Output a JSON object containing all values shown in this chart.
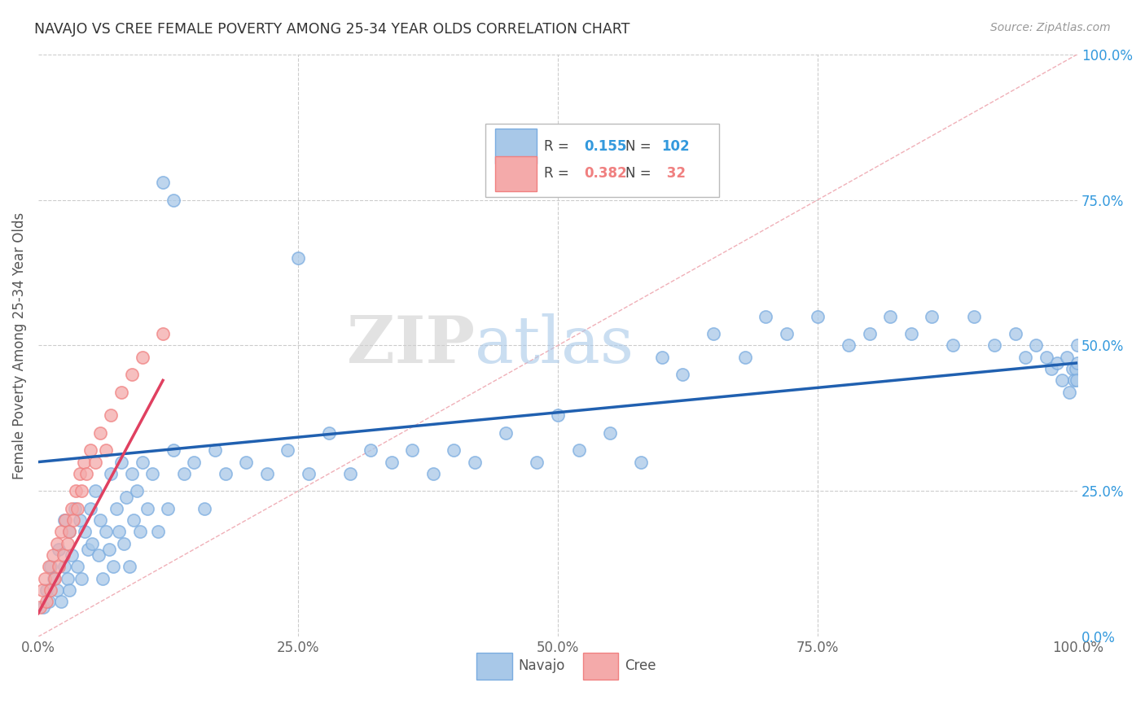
{
  "title": "NAVAJO VS CREE FEMALE POVERTY AMONG 25-34 YEAR OLDS CORRELATION CHART",
  "source": "Source: ZipAtlas.com",
  "ylabel": "Female Poverty Among 25-34 Year Olds",
  "navajo_R": 0.155,
  "navajo_N": 102,
  "cree_R": 0.382,
  "cree_N": 32,
  "navajo_color": "#a8c8e8",
  "cree_color": "#f4aaaa",
  "navajo_edge_color": "#7aace0",
  "cree_edge_color": "#f08080",
  "navajo_line_color": "#2060b0",
  "cree_line_color": "#e04060",
  "diagonal_color": "#f0b0b8",
  "background_color": "#ffffff",
  "watermark_zip": "ZIP",
  "watermark_atlas": "atlas",
  "xlim": [
    0,
    1
  ],
  "ylim": [
    0,
    1
  ],
  "xticks": [
    0,
    0.25,
    0.5,
    0.75,
    1.0
  ],
  "yticks": [
    0,
    0.25,
    0.5,
    0.75,
    1.0
  ],
  "xticklabels": [
    "0.0%",
    "25.0%",
    "50.0%",
    "75.0%",
    "100.0%"
  ],
  "yticklabels": [
    "0.0%",
    "25.0%",
    "50.0%",
    "75.0%",
    "100.0%"
  ],
  "navajo_x": [
    0.005,
    0.008,
    0.01,
    0.012,
    0.015,
    0.018,
    0.02,
    0.022,
    0.025,
    0.025,
    0.028,
    0.03,
    0.03,
    0.032,
    0.035,
    0.038,
    0.04,
    0.042,
    0.045,
    0.048,
    0.05,
    0.052,
    0.055,
    0.058,
    0.06,
    0.062,
    0.065,
    0.068,
    0.07,
    0.072,
    0.075,
    0.078,
    0.08,
    0.082,
    0.085,
    0.088,
    0.09,
    0.092,
    0.095,
    0.098,
    0.1,
    0.105,
    0.11,
    0.115,
    0.12,
    0.125,
    0.13,
    0.14,
    0.15,
    0.16,
    0.17,
    0.18,
    0.2,
    0.22,
    0.24,
    0.26,
    0.28,
    0.3,
    0.32,
    0.34,
    0.36,
    0.38,
    0.4,
    0.42,
    0.45,
    0.48,
    0.5,
    0.52,
    0.55,
    0.58,
    0.6,
    0.62,
    0.65,
    0.68,
    0.7,
    0.72,
    0.75,
    0.78,
    0.8,
    0.82,
    0.84,
    0.86,
    0.88,
    0.9,
    0.92,
    0.94,
    0.95,
    0.96,
    0.97,
    0.975,
    0.98,
    0.985,
    0.99,
    0.992,
    0.995,
    0.997,
    0.998,
    0.999,
    1.0,
    1.0,
    0.13,
    0.25
  ],
  "navajo_y": [
    0.05,
    0.08,
    0.06,
    0.12,
    0.1,
    0.08,
    0.15,
    0.06,
    0.12,
    0.2,
    0.1,
    0.18,
    0.08,
    0.14,
    0.22,
    0.12,
    0.2,
    0.1,
    0.18,
    0.15,
    0.22,
    0.16,
    0.25,
    0.14,
    0.2,
    0.1,
    0.18,
    0.15,
    0.28,
    0.12,
    0.22,
    0.18,
    0.3,
    0.16,
    0.24,
    0.12,
    0.28,
    0.2,
    0.25,
    0.18,
    0.3,
    0.22,
    0.28,
    0.18,
    0.78,
    0.22,
    0.32,
    0.28,
    0.3,
    0.22,
    0.32,
    0.28,
    0.3,
    0.28,
    0.32,
    0.28,
    0.35,
    0.28,
    0.32,
    0.3,
    0.32,
    0.28,
    0.32,
    0.3,
    0.35,
    0.3,
    0.38,
    0.32,
    0.35,
    0.3,
    0.48,
    0.45,
    0.52,
    0.48,
    0.55,
    0.52,
    0.55,
    0.5,
    0.52,
    0.55,
    0.52,
    0.55,
    0.5,
    0.55,
    0.5,
    0.52,
    0.48,
    0.5,
    0.48,
    0.46,
    0.47,
    0.44,
    0.48,
    0.42,
    0.46,
    0.44,
    0.46,
    0.44,
    0.47,
    0.5,
    0.75,
    0.65
  ],
  "cree_x": [
    0.002,
    0.004,
    0.006,
    0.008,
    0.01,
    0.012,
    0.014,
    0.016,
    0.018,
    0.02,
    0.022,
    0.024,
    0.026,
    0.028,
    0.03,
    0.032,
    0.034,
    0.036,
    0.038,
    0.04,
    0.042,
    0.044,
    0.046,
    0.05,
    0.055,
    0.06,
    0.065,
    0.07,
    0.08,
    0.09,
    0.1,
    0.12
  ],
  "cree_y": [
    0.05,
    0.08,
    0.1,
    0.06,
    0.12,
    0.08,
    0.14,
    0.1,
    0.16,
    0.12,
    0.18,
    0.14,
    0.2,
    0.16,
    0.18,
    0.22,
    0.2,
    0.25,
    0.22,
    0.28,
    0.25,
    0.3,
    0.28,
    0.32,
    0.3,
    0.35,
    0.32,
    0.38,
    0.42,
    0.45,
    0.48,
    0.52
  ]
}
